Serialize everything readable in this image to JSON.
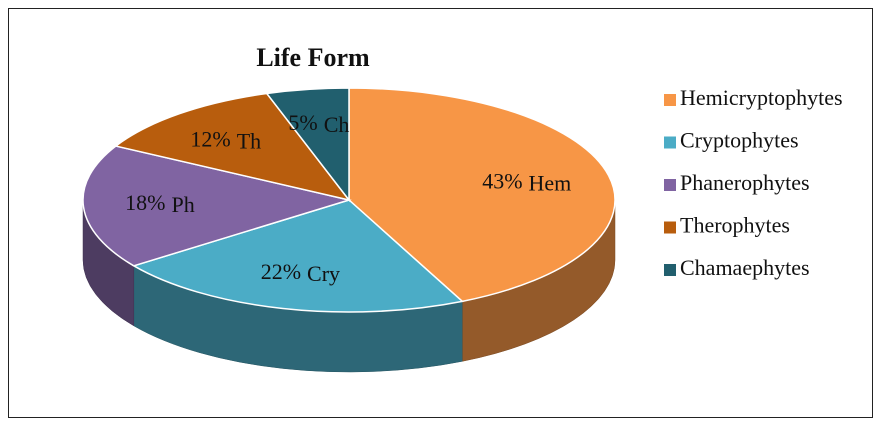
{
  "chart_data": {
    "type": "pie3d",
    "title": "Life Form",
    "categories": [
      "Hemicryptophytes",
      "Cryptophytes",
      "Phanerophytes",
      "Therophytes",
      "Chamaephytes"
    ],
    "short_labels": [
      "Hem",
      "Cry",
      "Ph",
      "Th",
      "Ch"
    ],
    "values": [
      43,
      22,
      18,
      12,
      5
    ],
    "value_labels": [
      "43%",
      "22%",
      "18%",
      "12%",
      "5%"
    ],
    "colors": [
      "#f79646",
      "#4bacc6",
      "#8064a2",
      "#b85d0d",
      "#215f6e"
    ],
    "legend": "right"
  }
}
